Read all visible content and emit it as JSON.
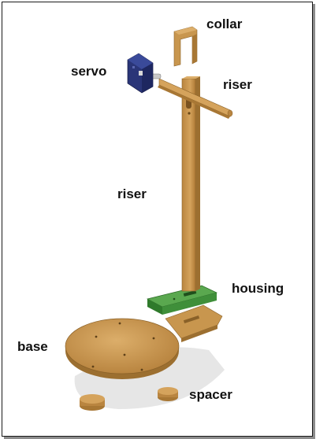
{
  "labels": {
    "collar": "collar",
    "servo": "servo",
    "riser_top": "riser",
    "riser_mid": "riser",
    "housing": "housing",
    "base": "base",
    "spacer": "spacer"
  },
  "colors": {
    "wood": "#c8964e",
    "wood_dark": "#a87734",
    "wood_light": "#dcae6a",
    "housing_green": "#3f8f3a",
    "servo_blue": "#2a3578"
  }
}
